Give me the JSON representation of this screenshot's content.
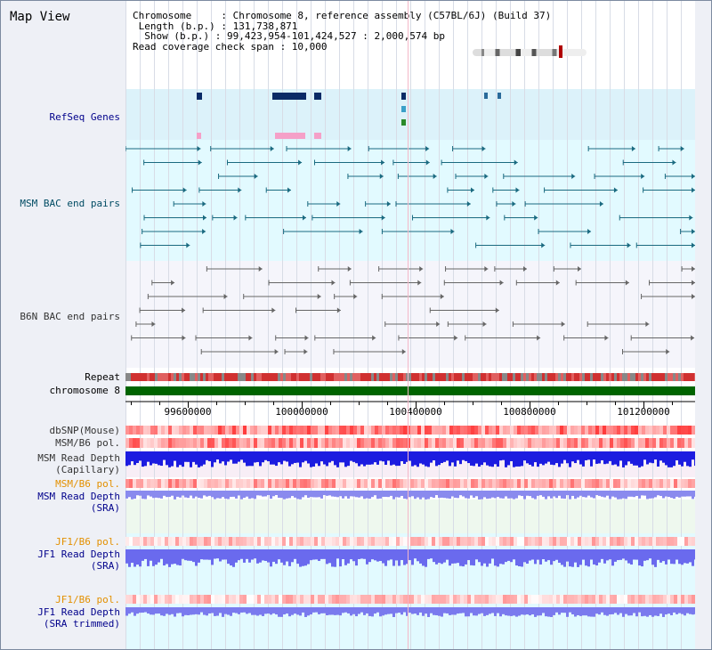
{
  "page_title": "Map View",
  "info": {
    "chromosome": "Chromosome     : Chromosome 8, reference assembly (C57BL/6J) (Build 37)",
    "length": " Length (b.p.) : 131,738,871",
    "show": "  Show (b.p.) : 99,423,954-101,424,527 : 2,000,574 bp",
    "span": "Read coverage check span : 10,000"
  },
  "tracks": {
    "refseq": "RefSeq Genes",
    "msm_bac": "MSM BAC end pairs",
    "b6n_bac": "B6N BAC end pairs",
    "repeat": "Repeat",
    "chromosome": "chromosome 8",
    "dbsnp": "dbSNP(Mouse)",
    "msm_b6_pol": "MSM/B6 pol.",
    "msm_depth_cap_1": "MSM Read Depth",
    "msm_depth_cap_2": "(Capillary)",
    "msm_b6_pol_2": "MSM/B6 pol.",
    "msm_depth_sra_1": "MSM Read Depth",
    "msm_depth_sra_2": "(SRA)",
    "jf1_b6_pol": "JF1/B6 pol.",
    "jf1_depth_sra_1": "JF1 Read Depth",
    "jf1_depth_sra_2": "(SRA)",
    "jf1_b6_pol_2": "JF1/B6 pol.",
    "jf1_depth_trim_1": "JF1 Read Depth",
    "jf1_depth_trim_2": "(SRA trimmed)"
  },
  "axis": {
    "ticks": [
      "99600000",
      "100000000",
      "100400000",
      "100800000",
      "101200000"
    ]
  },
  "colors": {
    "refseq_bg": "#dcf2fa",
    "msm_bac_bg": "#e2faff",
    "b6n_bg": "#f5f5fb",
    "chrom_green": "#006400",
    "depth_blue": "#1c1ce0",
    "depth_sra": "#8a8aee"
  }
}
